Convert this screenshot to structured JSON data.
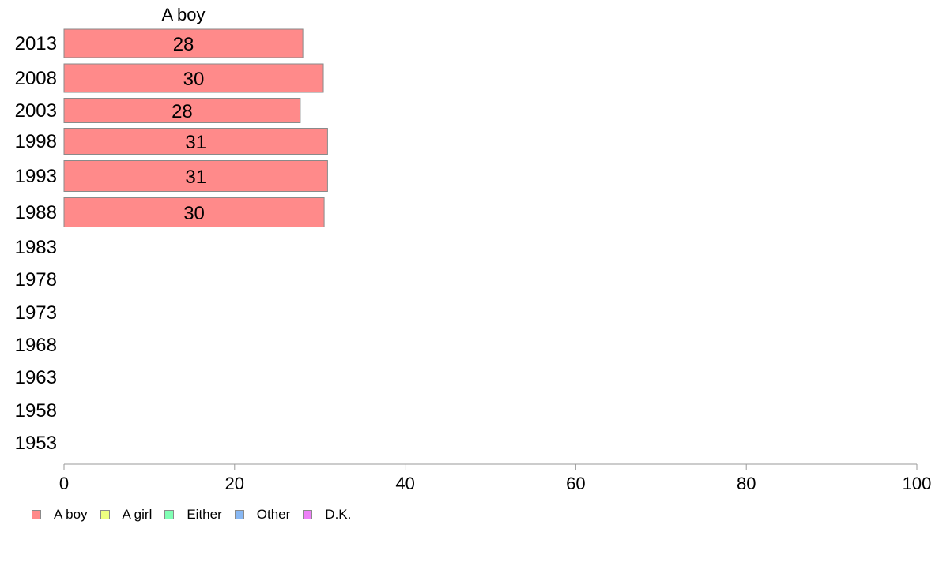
{
  "chart_data": {
    "type": "bar",
    "orientation": "horizontal",
    "title": "A boy",
    "categories": [
      "2013",
      "2008",
      "2003",
      "1998",
      "1993",
      "1988",
      "1983",
      "1978",
      "1973",
      "1968",
      "1963",
      "1958",
      "1953"
    ],
    "series": [
      {
        "name": "A boy",
        "color": "#ff8a8a",
        "values": [
          28,
          30.4,
          27.7,
          30.9,
          30.9,
          30.5,
          null,
          null,
          null,
          null,
          null,
          null,
          null
        ],
        "labels": [
          "28",
          "30",
          "28",
          "31",
          "31",
          "30",
          "",
          "",
          "",
          "",
          "",
          "",
          ""
        ]
      }
    ],
    "xlim": [
      0,
      100
    ],
    "xticks": [
      "0",
      "20",
      "40",
      "60",
      "80",
      "100"
    ],
    "grid": false,
    "legend_position": "bottom-left"
  },
  "legend": [
    {
      "label": "A boy",
      "color": "#ff8a8a"
    },
    {
      "label": "A girl",
      "color": "#eeff80"
    },
    {
      "label": "Either",
      "color": "#80ffb4"
    },
    {
      "label": "Other",
      "color": "#88b8f4"
    },
    {
      "label": "D.K.",
      "color": "#ee80f8"
    }
  ]
}
